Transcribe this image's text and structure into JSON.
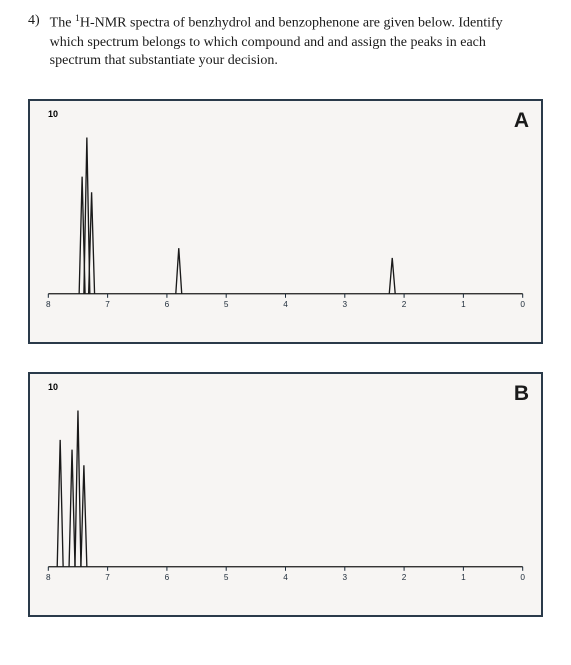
{
  "question": {
    "number": "4)",
    "text_html": "The <sup>1</sup>H-NMR spectra of benzhydrol and benzophenone are given below. Identify which spectrum belongs to which compound and and assign the peaks in each spectrum that substantiate your decision."
  },
  "spectrumA": {
    "label": "A",
    "yaxis_label": "10",
    "type": "nmr-spectrum",
    "background_color": "#f7f5f3",
    "border_color": "#2a3a4a",
    "baseline_color": "#1a1a1a",
    "peak_color": "#1a1a1a",
    "tick_color": "#1c2a38",
    "tick_font_family": "Arial",
    "tick_fontsize": 8,
    "label_fontsize": 21,
    "x_range_ppm": [
      8,
      0
    ],
    "x_ticks": [
      8,
      7,
      6,
      5,
      4,
      3,
      2,
      1,
      0
    ],
    "stroke_width": 1.3,
    "multiplet_halfwidth": 0.05,
    "multiplet_spread": 0.08,
    "peaks": [
      {
        "ppm": 7.35,
        "height": 0.96,
        "kind": "multiplet"
      },
      {
        "ppm": 5.8,
        "height": 0.28,
        "kind": "singlet"
      },
      {
        "ppm": 2.2,
        "height": 0.22,
        "kind": "singlet"
      }
    ]
  },
  "spectrumB": {
    "label": "B",
    "yaxis_label": "10",
    "type": "nmr-spectrum",
    "background_color": "#f7f5f3",
    "border_color": "#2a3a4a",
    "baseline_color": "#1a1a1a",
    "peak_color": "#1a1a1a",
    "tick_color": "#1c2a38",
    "tick_font_family": "Arial",
    "tick_fontsize": 8,
    "label_fontsize": 21,
    "x_range_ppm": [
      8,
      0
    ],
    "x_ticks": [
      8,
      7,
      6,
      5,
      4,
      3,
      2,
      1,
      0
    ],
    "stroke_width": 1.3,
    "multiplet_halfwidth": 0.05,
    "multiplet_spread": 0.1,
    "peaks": [
      {
        "ppm": 7.8,
        "height": 0.78,
        "kind": "singlet"
      },
      {
        "ppm": 7.5,
        "height": 0.96,
        "kind": "multiplet"
      }
    ]
  }
}
